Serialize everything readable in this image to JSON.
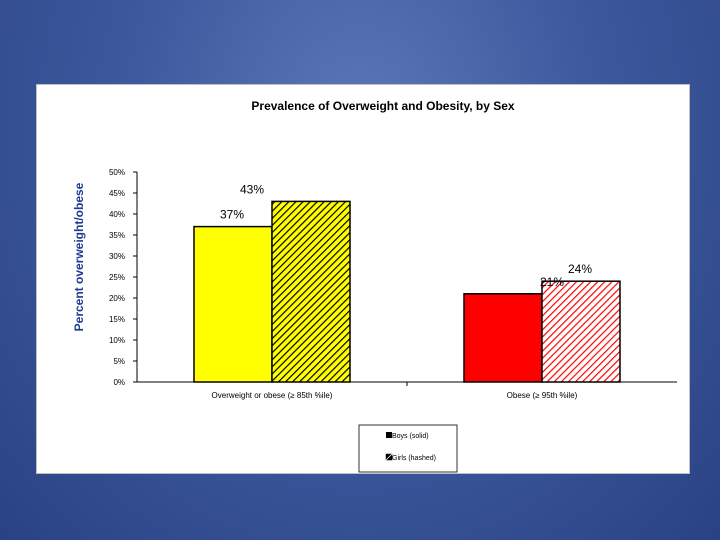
{
  "chart_data": {
    "type": "bar",
    "title": "Prevalence of Overweight and Obesity, by Sex",
    "ylabel": "Percent overweight/obese",
    "xlabel": "",
    "categories": [
      "Overweight or obese (≥ 85th %ile)",
      "Obese (≥ 95th %ile)"
    ],
    "series": [
      {
        "name": "Boys (solid)",
        "values": [
          37,
          21
        ],
        "data_labels": [
          "37%",
          "21%"
        ],
        "colors": [
          "#ffff00",
          "#ff0000"
        ],
        "pattern": "solid"
      },
      {
        "name": "Girls (hashed)",
        "values": [
          43,
          24
        ],
        "data_labels": [
          "43%",
          "24%"
        ],
        "colors": [
          "#ffff00",
          "#ff0000"
        ],
        "pattern": "hashed"
      }
    ],
    "ylim": [
      0,
      50
    ],
    "yticks": [
      0,
      5,
      10,
      15,
      20,
      25,
      30,
      35,
      40,
      45,
      50
    ],
    "ytick_labels": [
      "0%",
      "5%",
      "10%",
      "15%",
      "20%",
      "25%",
      "30%",
      "35%",
      "40%",
      "45%",
      "50%"
    ],
    "grid": false,
    "legend_position": "bottom-center"
  }
}
